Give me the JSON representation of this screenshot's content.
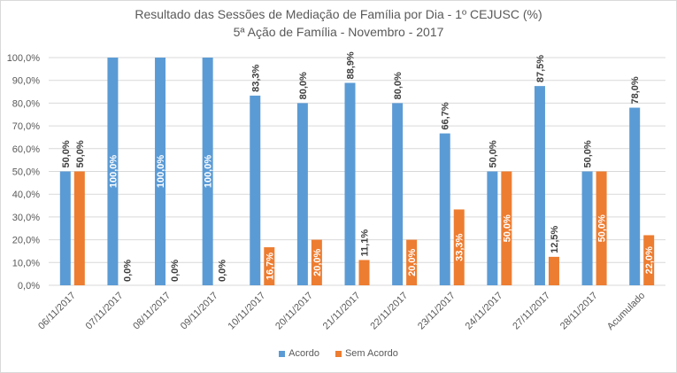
{
  "colors": {
    "acordo": "#5b9bd5",
    "sem_acordo": "#ed7d31",
    "grid": "#d9d9d9",
    "text": "#595959"
  },
  "chart_data": {
    "type": "bar",
    "title": "Resultado das Sessões de Mediação de Família por Dia - 1º CEJUSC (%)",
    "subtitle": "5ª Ação de Família -  Novembro  - 2017",
    "categories": [
      "06/11/2017",
      "07/11/2017",
      "08/11/2017",
      "09/11/2017",
      "10/11/2017",
      "20/11/2017",
      "21/11/2017",
      "22/11/2017",
      "23/11/2017",
      "24/11/2017",
      "27/11/2017",
      "28/11/2017",
      "Acumulado"
    ],
    "series": [
      {
        "name": "Acordo",
        "values": [
          50.0,
          100.0,
          100.0,
          100.0,
          83.3,
          80.0,
          88.9,
          80.0,
          66.7,
          50.0,
          87.5,
          50.0,
          78.0
        ],
        "labels": [
          "50,0%",
          "100,0%",
          "100,0%",
          "100,0%",
          "83,3%",
          "80,0%",
          "88,9%",
          "80,0%",
          "66,7%",
          "50,0%",
          "87,5%",
          "50,0%",
          "78,0%"
        ]
      },
      {
        "name": "Sem Acordo",
        "values": [
          50.0,
          0.0,
          0.0,
          0.0,
          16.7,
          20.0,
          11.1,
          20.0,
          33.3,
          50.0,
          12.5,
          50.0,
          22.0
        ],
        "labels": [
          "50,0%",
          "0,0%",
          "0,0%",
          "0,0%",
          "16,7%",
          "20,0%",
          "11,1%",
          "20,0%",
          "33,3%",
          "50,0%",
          "12,5%",
          "50,0%",
          "22,0%"
        ]
      }
    ],
    "y_ticks": [
      "0,0%",
      "10,0%",
      "20,0%",
      "30,0%",
      "40,0%",
      "50,0%",
      "60,0%",
      "70,0%",
      "80,0%",
      "90,0%",
      "100,0%"
    ],
    "ylim": [
      0,
      100
    ],
    "grid": true,
    "legend": "bottom"
  }
}
